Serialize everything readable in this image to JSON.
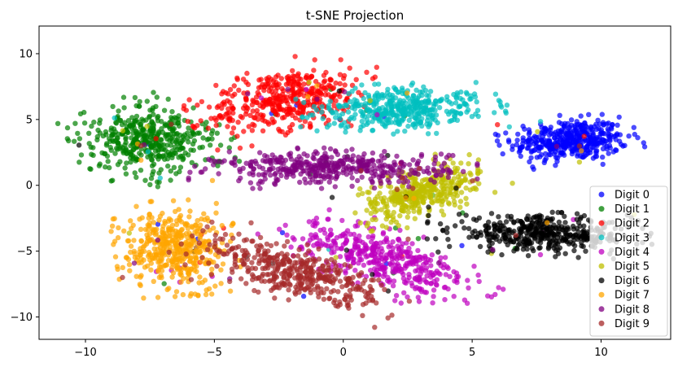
{
  "chart_data": {
    "type": "scatter",
    "title": "t-SNE Projection",
    "xlabel": "",
    "ylabel": "",
    "xlim": [
      -11.8,
      12.7
    ],
    "ylim": [
      -11.7,
      12.1
    ],
    "xticks": [
      -10,
      -5,
      0,
      5,
      10
    ],
    "yticks": [
      -10,
      -5,
      0,
      5,
      10
    ],
    "grid": false,
    "legend_position": "lower-right",
    "series": [
      {
        "name": "Digit 0",
        "color": "#0000ff",
        "center": [
          8.8,
          3.4
        ],
        "spread": [
          2.0,
          1.4
        ],
        "angle": 8,
        "n": 420
      },
      {
        "name": "Digit 1",
        "color": "#008000",
        "center": [
          -7.6,
          3.4
        ],
        "spread": [
          2.2,
          2.3
        ],
        "angle": 40,
        "n": 440
      },
      {
        "name": "Digit 2",
        "color": "#ff0000",
        "center": [
          -2.2,
          6.6
        ],
        "spread": [
          3.0,
          1.9
        ],
        "angle": 28,
        "n": 420
      },
      {
        "name": "Digit 3",
        "color": "#00bfbf",
        "center": [
          2.3,
          5.8
        ],
        "spread": [
          2.9,
          1.4
        ],
        "angle": 5,
        "n": 420
      },
      {
        "name": "Digit 4",
        "color": "#bf00bf",
        "center": [
          1.6,
          -5.6
        ],
        "spread": [
          3.6,
          1.6
        ],
        "angle": -38,
        "n": 420
      },
      {
        "name": "Digit 5",
        "color": "#bfbf00",
        "center": [
          3.0,
          -0.6
        ],
        "spread": [
          2.4,
          1.3
        ],
        "angle": 42,
        "n": 400
      },
      {
        "name": "Digit 6",
        "color": "#000000",
        "center": [
          7.7,
          -3.7
        ],
        "spread": [
          3.2,
          1.2
        ],
        "angle": -4,
        "n": 430
      },
      {
        "name": "Digit 7",
        "color": "#ffa500",
        "center": [
          -6.5,
          -4.8
        ],
        "spread": [
          1.7,
          2.6
        ],
        "angle": 5,
        "n": 430
      },
      {
        "name": "Digit 8",
        "color": "#800080",
        "center": [
          -0.4,
          1.3
        ],
        "spread": [
          4.0,
          1.1
        ],
        "angle": 0,
        "n": 420
      },
      {
        "name": "Digit 9",
        "color": "#a52a2a",
        "center": [
          -1.8,
          -6.6
        ],
        "spread": [
          3.5,
          1.5
        ],
        "angle": -36,
        "n": 420
      }
    ]
  }
}
